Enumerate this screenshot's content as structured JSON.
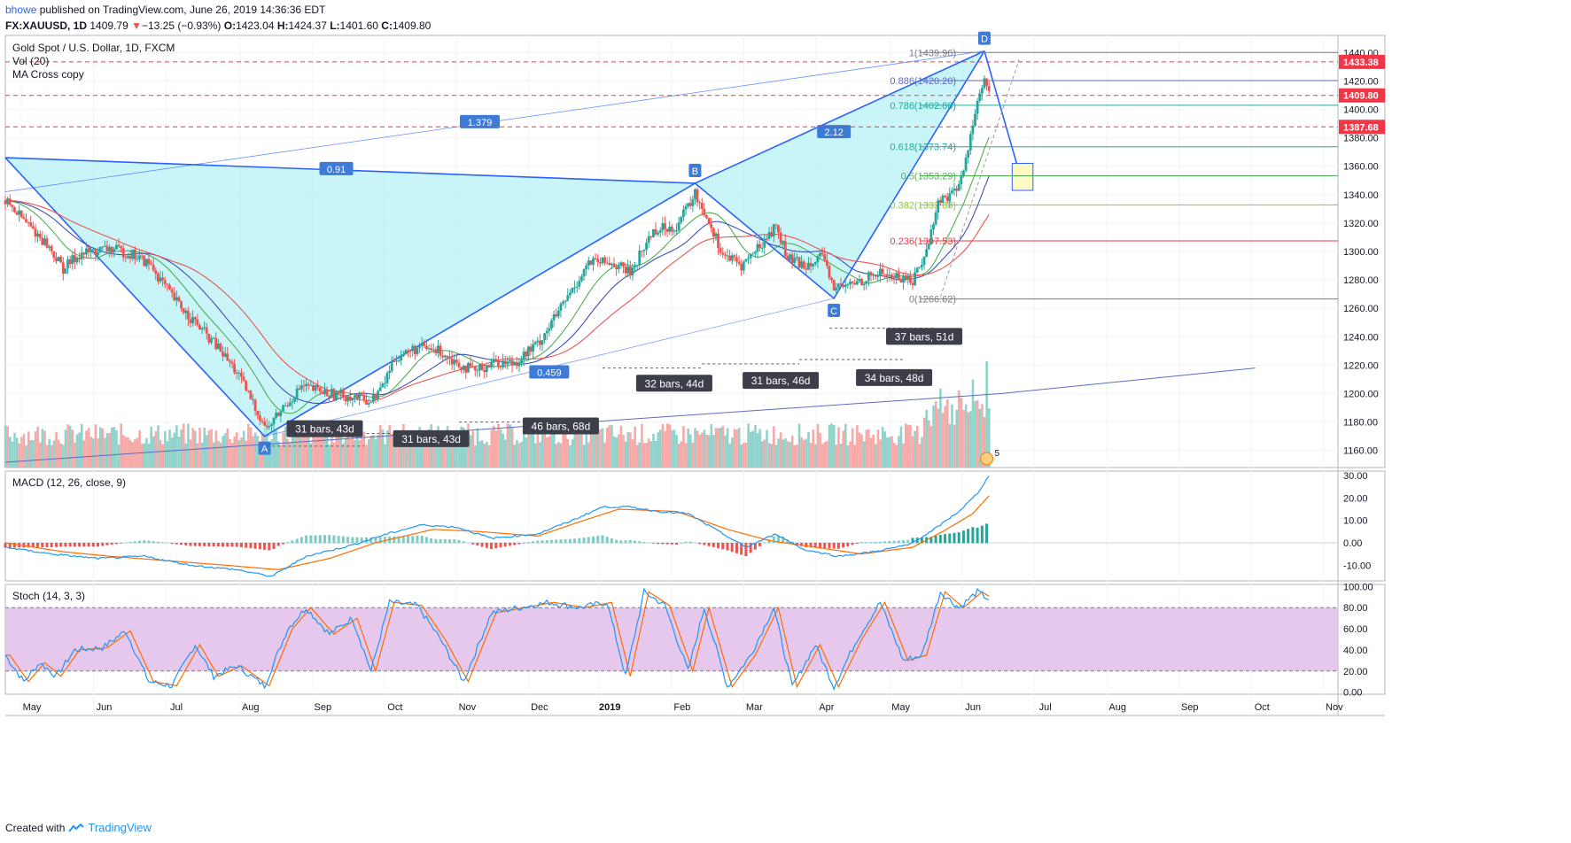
{
  "header": {
    "user": "bhowe",
    "published": "published on TradingView.com, June 26, 2019 14:36:36 EDT",
    "symbol": "FX:XAUUSD, 1D",
    "last": "1409.79",
    "change": "−13.25 (−0.93%)",
    "o_label": "O:",
    "o": "1423.04",
    "h_label": "H:",
    "h": "1424.37",
    "l_label": "L:",
    "l": "1401.60",
    "c_label": "C:",
    "c": "1409.80"
  },
  "footer": {
    "created": "Created with",
    "brand": "TradingView"
  },
  "legend": {
    "title": "Gold Spot / U.S. Dollar, 1D, FXCM",
    "vol": "Vol (20)",
    "ma": "MA Cross copy",
    "macd": "MACD (12, 26, close, 9)",
    "stoch": "Stoch (14, 3, 3)"
  },
  "colors": {
    "up": "#26a69a",
    "down": "#ef5350",
    "pattern_fill": "#b2f1f5",
    "pattern_line": "#2962ff",
    "price_red": "#f23645",
    "stoch_band": "#e1bee7",
    "macd_line": "#2196f3",
    "signal_line": "#ff6d00"
  },
  "chart_data": [
    {
      "type": "candlestick",
      "title": "Gold Spot / U.S. Dollar, 1D, FXCM",
      "x_ticks": [
        "May",
        "Jun",
        "Jul",
        "Aug",
        "Sep",
        "Oct",
        "Nov",
        "Dec",
        "2019",
        "Feb",
        "Mar",
        "Apr",
        "May",
        "Jun",
        "Jul",
        "Aug",
        "Sep",
        "Oct",
        "Nov"
      ],
      "y_ticks": [
        1160,
        1180,
        1200,
        1220,
        1240,
        1260,
        1280,
        1300,
        1320,
        1340,
        1360,
        1380,
        1400,
        1420,
        1440
      ],
      "ylim": [
        1148,
        1452
      ],
      "price_labels": [
        {
          "value": 1433.38,
          "label": "1433.38"
        },
        {
          "value": 1409.8,
          "label": "1409.80"
        },
        {
          "value": 1387.68,
          "label": "1387.68"
        }
      ],
      "close_path": [
        {
          "t": 0,
          "v": 1336
        },
        {
          "t": 8,
          "v": 1322
        },
        {
          "t": 18,
          "v": 1305
        },
        {
          "t": 25,
          "v": 1288
        },
        {
          "t": 32,
          "v": 1298
        },
        {
          "t": 45,
          "v": 1302
        },
        {
          "t": 55,
          "v": 1298
        },
        {
          "t": 63,
          "v": 1290
        },
        {
          "t": 72,
          "v": 1268
        },
        {
          "t": 82,
          "v": 1250
        },
        {
          "t": 92,
          "v": 1232
        },
        {
          "t": 100,
          "v": 1215
        },
        {
          "t": 108,
          "v": 1190
        },
        {
          "t": 113,
          "v": 1175
        },
        {
          "t": 120,
          "v": 1190
        },
        {
          "t": 128,
          "v": 1205
        },
        {
          "t": 140,
          "v": 1200
        },
        {
          "t": 150,
          "v": 1198
        },
        {
          "t": 158,
          "v": 1195
        },
        {
          "t": 163,
          "v": 1205
        },
        {
          "t": 168,
          "v": 1225
        },
        {
          "t": 178,
          "v": 1232
        },
        {
          "t": 188,
          "v": 1230
        },
        {
          "t": 195,
          "v": 1222
        },
        {
          "t": 203,
          "v": 1215
        },
        {
          "t": 210,
          "v": 1222
        },
        {
          "t": 220,
          "v": 1222
        },
        {
          "t": 230,
          "v": 1235
        },
        {
          "t": 240,
          "v": 1260
        },
        {
          "t": 252,
          "v": 1292
        },
        {
          "t": 262,
          "v": 1292
        },
        {
          "t": 270,
          "v": 1285
        },
        {
          "t": 280,
          "v": 1315
        },
        {
          "t": 290,
          "v": 1318
        },
        {
          "t": 298,
          "v": 1340
        },
        {
          "t": 303,
          "v": 1325
        },
        {
          "t": 310,
          "v": 1298
        },
        {
          "t": 318,
          "v": 1290
        },
        {
          "t": 325,
          "v": 1302
        },
        {
          "t": 333,
          "v": 1318
        },
        {
          "t": 338,
          "v": 1295
        },
        {
          "t": 345,
          "v": 1290
        },
        {
          "t": 352,
          "v": 1298
        },
        {
          "t": 358,
          "v": 1275
        },
        {
          "t": 363,
          "v": 1275
        },
        {
          "t": 370,
          "v": 1280
        },
        {
          "t": 378,
          "v": 1285
        },
        {
          "t": 385,
          "v": 1282
        },
        {
          "t": 392,
          "v": 1280
        },
        {
          "t": 398,
          "v": 1300
        },
        {
          "t": 403,
          "v": 1335
        },
        {
          "t": 410,
          "v": 1342
        },
        {
          "t": 414,
          "v": 1355
        },
        {
          "t": 418,
          "v": 1392
        },
        {
          "t": 421,
          "v": 1410
        },
        {
          "t": 423,
          "v": 1420
        },
        {
          "t": 425,
          "v": 1409.8
        }
      ],
      "volume_max": 1
    },
    {
      "type": "line",
      "title": "MACD (12, 26, close, 9)",
      "y_ticks": [
        -10,
        0,
        10,
        20,
        30
      ],
      "ylim": [
        -17,
        32
      ],
      "macd": [
        {
          "t": 0,
          "v": -2
        },
        {
          "t": 20,
          "v": -5
        },
        {
          "t": 40,
          "v": -7
        },
        {
          "t": 60,
          "v": -6
        },
        {
          "t": 80,
          "v": -10
        },
        {
          "t": 100,
          "v": -12
        },
        {
          "t": 115,
          "v": -15
        },
        {
          "t": 130,
          "v": -6
        },
        {
          "t": 150,
          "v": -1
        },
        {
          "t": 165,
          "v": 4
        },
        {
          "t": 180,
          "v": 8
        },
        {
          "t": 195,
          "v": 7
        },
        {
          "t": 210,
          "v": 2
        },
        {
          "t": 230,
          "v": 4
        },
        {
          "t": 245,
          "v": 10
        },
        {
          "t": 258,
          "v": 16
        },
        {
          "t": 270,
          "v": 16
        },
        {
          "t": 282,
          "v": 14
        },
        {
          "t": 295,
          "v": 13
        },
        {
          "t": 310,
          "v": 4
        },
        {
          "t": 320,
          "v": -2
        },
        {
          "t": 333,
          "v": 4
        },
        {
          "t": 345,
          "v": -3
        },
        {
          "t": 360,
          "v": -6
        },
        {
          "t": 375,
          "v": -4
        },
        {
          "t": 390,
          "v": -1
        },
        {
          "t": 400,
          "v": 5
        },
        {
          "t": 412,
          "v": 14
        },
        {
          "t": 420,
          "v": 22
        },
        {
          "t": 425,
          "v": 30
        }
      ],
      "signal": [
        {
          "t": 0,
          "v": 0
        },
        {
          "t": 25,
          "v": -4
        },
        {
          "t": 45,
          "v": -6
        },
        {
          "t": 70,
          "v": -8
        },
        {
          "t": 95,
          "v": -10
        },
        {
          "t": 118,
          "v": -12
        },
        {
          "t": 140,
          "v": -7
        },
        {
          "t": 160,
          "v": 0
        },
        {
          "t": 185,
          "v": 6
        },
        {
          "t": 205,
          "v": 5
        },
        {
          "t": 230,
          "v": 3
        },
        {
          "t": 250,
          "v": 10
        },
        {
          "t": 265,
          "v": 15
        },
        {
          "t": 290,
          "v": 14
        },
        {
          "t": 312,
          "v": 6
        },
        {
          "t": 330,
          "v": 1
        },
        {
          "t": 350,
          "v": -2
        },
        {
          "t": 370,
          "v": -5
        },
        {
          "t": 392,
          "v": -2
        },
        {
          "t": 405,
          "v": 5
        },
        {
          "t": 418,
          "v": 13
        },
        {
          "t": 425,
          "v": 21
        }
      ]
    },
    {
      "type": "line",
      "title": "Stoch (14, 3, 3)",
      "y_ticks": [
        0,
        20,
        40,
        60,
        80,
        100
      ],
      "ylim": [
        -2,
        102
      ],
      "bands": [
        20,
        80
      ],
      "k": [
        {
          "t": 0,
          "v": 35
        },
        {
          "t": 8,
          "v": 10
        },
        {
          "t": 15,
          "v": 28
        },
        {
          "t": 22,
          "v": 15
        },
        {
          "t": 30,
          "v": 40
        },
        {
          "t": 42,
          "v": 42
        },
        {
          "t": 52,
          "v": 58
        },
        {
          "t": 62,
          "v": 10
        },
        {
          "t": 72,
          "v": 6
        },
        {
          "t": 82,
          "v": 45
        },
        {
          "t": 90,
          "v": 15
        },
        {
          "t": 100,
          "v": 25
        },
        {
          "t": 112,
          "v": 6
        },
        {
          "t": 122,
          "v": 60
        },
        {
          "t": 130,
          "v": 80
        },
        {
          "t": 140,
          "v": 55
        },
        {
          "t": 150,
          "v": 70
        },
        {
          "t": 158,
          "v": 20
        },
        {
          "t": 166,
          "v": 85
        },
        {
          "t": 178,
          "v": 82
        },
        {
          "t": 188,
          "v": 50
        },
        {
          "t": 198,
          "v": 10
        },
        {
          "t": 210,
          "v": 75
        },
        {
          "t": 222,
          "v": 80
        },
        {
          "t": 235,
          "v": 85
        },
        {
          "t": 248,
          "v": 80
        },
        {
          "t": 260,
          "v": 85
        },
        {
          "t": 268,
          "v": 15
        },
        {
          "t": 276,
          "v": 95
        },
        {
          "t": 285,
          "v": 82
        },
        {
          "t": 295,
          "v": 20
        },
        {
          "t": 302,
          "v": 80
        },
        {
          "t": 312,
          "v": 5
        },
        {
          "t": 322,
          "v": 35
        },
        {
          "t": 332,
          "v": 80
        },
        {
          "t": 340,
          "v": 5
        },
        {
          "t": 350,
          "v": 45
        },
        {
          "t": 358,
          "v": 5
        },
        {
          "t": 368,
          "v": 50
        },
        {
          "t": 378,
          "v": 85
        },
        {
          "t": 388,
          "v": 30
        },
        {
          "t": 396,
          "v": 35
        },
        {
          "t": 404,
          "v": 95
        },
        {
          "t": 412,
          "v": 80
        },
        {
          "t": 420,
          "v": 95
        },
        {
          "t": 425,
          "v": 88
        }
      ]
    }
  ],
  "pattern": {
    "points": [
      {
        "label": "A",
        "t": 112,
        "v": 1170
      },
      {
        "label": "B",
        "t": 298,
        "v": 1348
      },
      {
        "label": "C",
        "t": 358,
        "v": 1267
      },
      {
        "label": "D",
        "t": 423,
        "v": 1441
      }
    ],
    "ratios": [
      {
        "label": "1.379",
        "t": 205,
        "v": 1391
      },
      {
        "label": "0.91",
        "t": 143,
        "v": 1358
      },
      {
        "label": "2.12",
        "t": 358,
        "v": 1384
      },
      {
        "label": "0.459",
        "t": 235,
        "v": 1215
      }
    ],
    "fib_levels": [
      {
        "label": "1(1439.96)",
        "value": 1440,
        "color": "#787b86"
      },
      {
        "label": "0.886(1420.20)",
        "value": 1420.2,
        "color": "#5c6bc0"
      },
      {
        "label": "0.786(1402.86)",
        "value": 1402.9,
        "color": "#26a69a"
      },
      {
        "label": "0.618(1373.74)",
        "value": 1373.7,
        "color": "#26a69a"
      },
      {
        "label": "0.5(1353.29)",
        "value": 1353.3,
        "color": "#4caf50"
      },
      {
        "label": "0.382(1332.83)",
        "value": 1332.8,
        "color": "#8bc34a"
      },
      {
        "label": "0.236(1307.53)",
        "value": 1307.5,
        "color": "#f23645"
      },
      {
        "label": "0(1266.62)",
        "value": 1266.6,
        "color": "#787b86"
      }
    ],
    "bar_counts": [
      {
        "label": "31 bars, 43d",
        "t": 138,
        "v": 1175
      },
      {
        "label": "31 bars, 43d",
        "t": 184,
        "v": 1168
      },
      {
        "label": "46 bars, 68d",
        "t": 240,
        "v": 1177
      },
      {
        "label": "32 bars, 44d",
        "t": 289,
        "v": 1207
      },
      {
        "label": "31 bars, 46d",
        "t": 335,
        "v": 1209
      },
      {
        "label": "34 bars, 48d",
        "t": 384,
        "v": 1211
      },
      {
        "label": "37 bars, 51d",
        "t": 397,
        "v": 1240
      }
    ],
    "earnings_badge": "5"
  }
}
